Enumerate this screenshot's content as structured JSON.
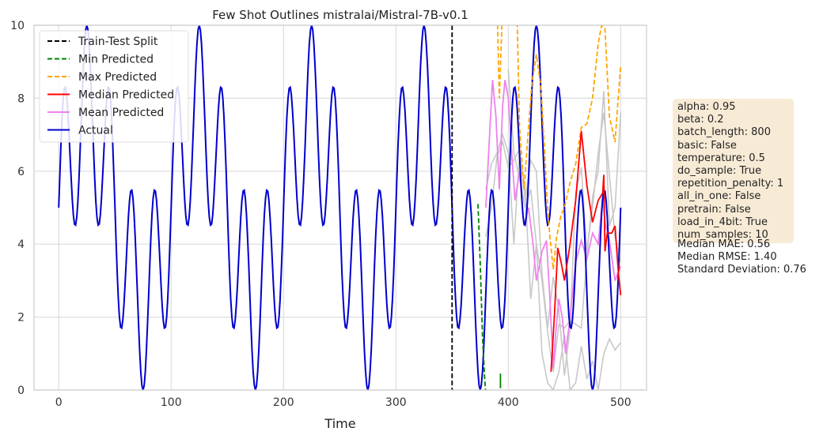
{
  "chart_data": {
    "type": "line",
    "title": "Few Shot Outlines mistralai/Mistral-7B-v0.1",
    "xlabel": "Time",
    "ylabel": "",
    "xlim": [
      -22,
      523
    ],
    "ylim": [
      0,
      10
    ],
    "x_ticks": [
      0,
      100,
      200,
      300,
      400,
      500
    ],
    "y_ticks": [
      0,
      2,
      4,
      6,
      8,
      10
    ],
    "grid": true,
    "legend_position": "top-left",
    "split_x": 350,
    "legend": [
      {
        "label": "Train-Test Split",
        "color": "#000000",
        "dash": true
      },
      {
        "label": "Min Predicted",
        "color": "#008000",
        "dash": true
      },
      {
        "label": "Max Predicted",
        "color": "#ffa500",
        "dash": true
      },
      {
        "label": "Median Predicted",
        "color": "#ff0000",
        "dash": false
      },
      {
        "label": "Mean Predicted",
        "color": "#ee82ee",
        "dash": false
      },
      {
        "label": "Actual",
        "color": "#0000cd",
        "dash": false
      }
    ],
    "actual": {
      "name": "Actual",
      "x_range": [
        0,
        500
      ],
      "formula": "5 + 2.5*sin(2*pi*t/20) + 2.5*sin(2*pi*t/100)",
      "note": "values sampled every 1 unit of time"
    },
    "series": [
      {
        "name": "Max Predicted",
        "x": [
          390,
          392,
          395,
          400,
          405,
          408,
          410,
          414,
          418,
          421,
          425,
          429,
          432,
          435,
          437,
          440,
          443,
          447,
          450,
          455,
          460,
          465,
          470,
          475,
          480,
          483,
          486,
          490,
          495,
          500
        ],
        "y": [
          10.6,
          8.0,
          10.6,
          10.6,
          10.6,
          10.0,
          7.2,
          5.5,
          7.2,
          8.4,
          9.2,
          8.3,
          6.7,
          5.0,
          4.2,
          3.3,
          4.2,
          4.8,
          5.0,
          5.7,
          6.2,
          7.2,
          7.3,
          8.0,
          9.5,
          10.0,
          9.9,
          7.5,
          6.8,
          8.9
        ]
      },
      {
        "name": "Min Predicted",
        "x": [
          373,
          375,
          377,
          379,
          381,
          393,
          393
        ],
        "y": [
          5.1,
          3.5,
          1.5,
          0.3,
          -0.5,
          0.05,
          0.45
        ]
      },
      {
        "name": "Median Predicted",
        "x": [
          438,
          441,
          444,
          447,
          450,
          455,
          460,
          465,
          470,
          475,
          480,
          484,
          485,
          486,
          488,
          492,
          495,
          498,
          500
        ],
        "y": [
          0.5,
          2.0,
          3.9,
          3.5,
          3.0,
          4.0,
          5.2,
          7.1,
          5.6,
          4.6,
          5.2,
          5.4,
          5.9,
          3.8,
          4.3,
          4.3,
          4.5,
          3.2,
          2.6
        ]
      },
      {
        "name": "Mean Predicted",
        "x": [
          380,
          383,
          386,
          389,
          392,
          395,
          397,
          400,
          403,
          406,
          410,
          414,
          418,
          422,
          425,
          430,
          434,
          437,
          440,
          442,
          445,
          448,
          451,
          455,
          460,
          465,
          470,
          475,
          480,
          484,
          486,
          490,
          495,
          500
        ],
        "y": [
          5.0,
          6.8,
          8.5,
          7.5,
          5.5,
          7.8,
          8.5,
          8.0,
          6.5,
          5.2,
          6.0,
          4.5,
          5.0,
          4.0,
          3.0,
          3.8,
          4.1,
          2.5,
          0.6,
          1.5,
          2.5,
          2.0,
          1.0,
          2.0,
          3.5,
          4.1,
          3.6,
          4.3,
          4.0,
          5.3,
          4.6,
          4.1,
          3.0,
          3.4
        ]
      }
    ],
    "sample_paths": [
      {
        "x": [
          380,
          385,
          390,
          395,
          400,
          405,
          410,
          415,
          420,
          425,
          430,
          435,
          440,
          445,
          450,
          455,
          460,
          465,
          470,
          475,
          480,
          485,
          490,
          495,
          500
        ],
        "y": [
          5.5,
          6.2,
          6.5,
          7.0,
          6.5,
          4.0,
          6.5,
          5.5,
          2.5,
          4.0,
          1.0,
          0.2,
          0.0,
          0.5,
          1.5,
          0.0,
          0.2,
          1.2,
          0.3,
          0.8,
          0.0,
          1.0,
          1.4,
          1.1,
          1.3
        ]
      },
      {
        "x": [
          400,
          405,
          410,
          415,
          420,
          425,
          430,
          435,
          440,
          445,
          450,
          455,
          460,
          465,
          470,
          475,
          480,
          485,
          490,
          495,
          500
        ],
        "y": [
          8.8,
          6.5,
          5.8,
          5.0,
          5.5,
          4.0,
          3.0,
          1.6,
          0.5,
          1.8,
          1.7,
          1.9,
          1.8,
          1.7,
          3.7,
          5.3,
          6.0,
          8.2,
          4.5,
          5.0,
          7.6
        ]
      },
      {
        "x": [
          380,
          385,
          390,
          395,
          400,
          405,
          410,
          415,
          420,
          425,
          430,
          435,
          440,
          445,
          450,
          455,
          460,
          465,
          470,
          475,
          480,
          485,
          490,
          495,
          500
        ],
        "y": [
          4.2,
          5.0,
          6.4,
          6.8,
          6.1,
          6.3,
          6.6,
          5.2,
          6.3,
          6.0,
          3.2,
          1.7,
          3.1,
          2.2,
          0.4,
          1.7,
          5.4,
          6.1,
          3.8,
          5.0,
          6.5,
          7.6,
          5.9,
          4.2,
          3.5
        ]
      }
    ]
  },
  "params": [
    "alpha: 0.95",
    "beta: 0.2",
    "batch_length: 800",
    "basic: False",
    "temperature: 0.5",
    "do_sample: True",
    "repetition_penalty: 1",
    "all_in_one: False",
    "pretrain: False",
    "load_in_4bit: True",
    "num_samples: 10"
  ],
  "stats": [
    "Median MAE: 0.56",
    "Median RMSE: 1.40",
    "Standard Deviation: 0.76"
  ]
}
